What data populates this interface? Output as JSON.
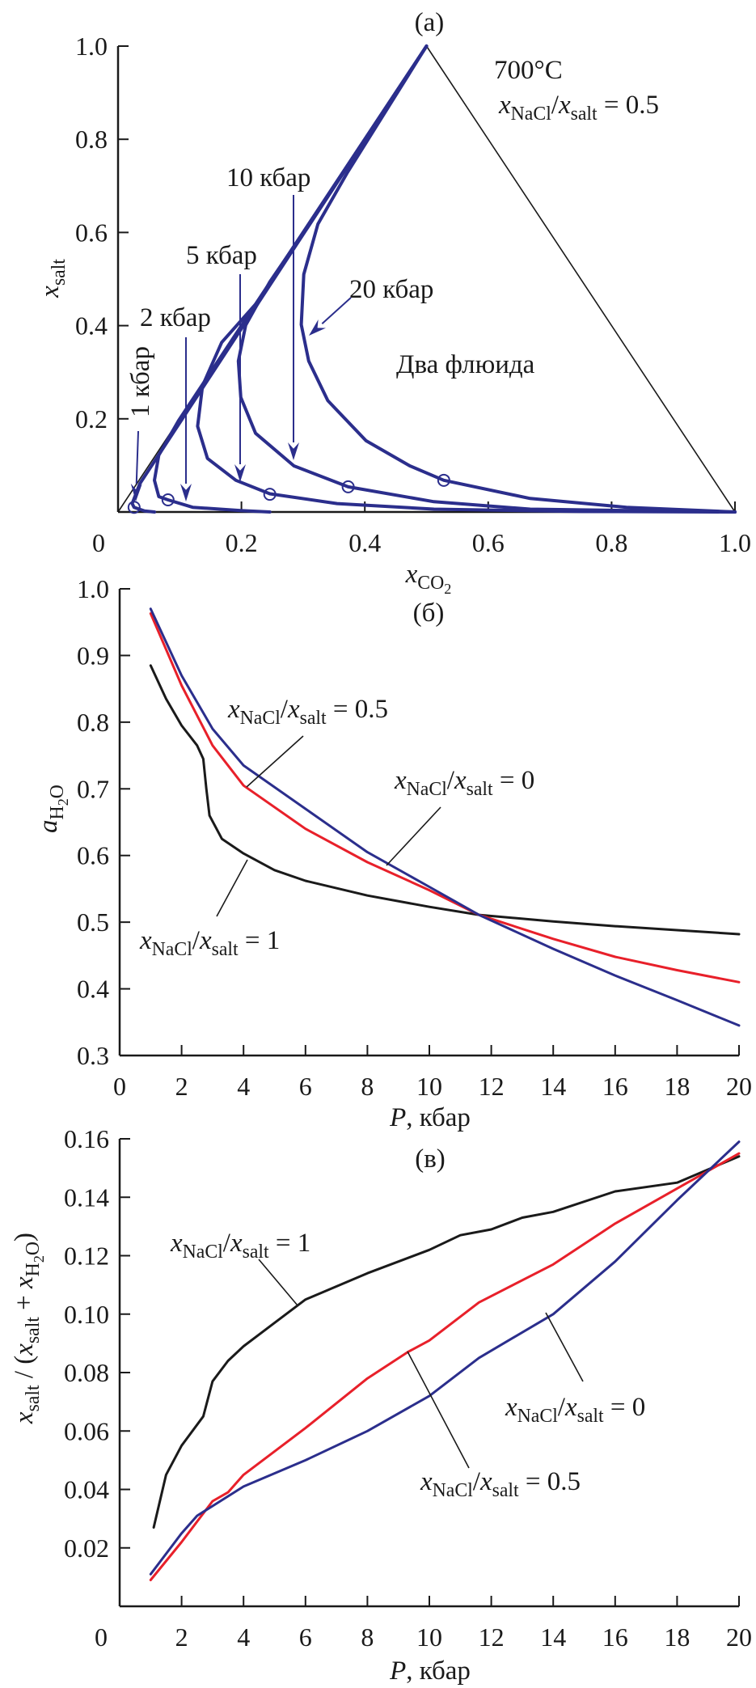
{
  "colors": {
    "axis": "#1a1a1a",
    "blue": "#2b2e8c",
    "red": "#e8202a",
    "black": "#1a1a1a"
  },
  "chart_data": [
    {
      "type": "line",
      "title": "(a)",
      "xlabel": [
        {
          "t": "x",
          "s": "i"
        },
        {
          "t": "CO",
          "s": "sub"
        },
        {
          "t": "2",
          "s": "sub2"
        }
      ],
      "ylabel": [
        {
          "t": "x",
          "s": "i"
        },
        {
          "t": "salt",
          "s": "sub"
        }
      ],
      "xlim": [
        0,
        1
      ],
      "ylim": [
        0,
        1
      ],
      "xticks": [
        0,
        0.2,
        0.4,
        0.6,
        0.8,
        1.0
      ],
      "xtick_labels": [
        "0",
        "0.2",
        "0.4",
        "0.6",
        "0.8",
        "1.0"
      ],
      "yticks": [
        0.2,
        0.4,
        0.6,
        0.8,
        1.0
      ],
      "ytick_labels": [
        "0.2",
        "0.4",
        "0.6",
        "0.8",
        "1.0"
      ],
      "triangle": [
        [
          0,
          0
        ],
        [
          0.5,
          1
        ],
        [
          1,
          0
        ]
      ],
      "temperature_label": "700°C",
      "ratio_label": [
        {
          "t": "x",
          "s": "i"
        },
        {
          "t": "NaCl",
          "s": "sub"
        },
        {
          "t": "/",
          "s": "r"
        },
        {
          "t": "x",
          "s": "i"
        },
        {
          "t": "salt",
          "s": "sub"
        },
        {
          "t": " = 0.5",
          "s": "r"
        }
      ],
      "region_label": "Два флюида",
      "series": [
        {
          "name": "1 кбар",
          "color": "#2b2e8c",
          "x": [
            0.5,
            0.035,
            0.023,
            0.026,
            0.043,
            0.059
          ],
          "y": [
            1,
            0.06,
            0.018,
            0.01,
            0.002,
            0
          ]
        },
        {
          "name": "2 кбар",
          "color": "#2b2e8c",
          "x": [
            0.5,
            0.098,
            0.066,
            0.059,
            0.066,
            0.081,
            0.121,
            0.199,
            0.246
          ],
          "y": [
            1,
            0.196,
            0.122,
            0.068,
            0.033,
            0.026,
            0.01,
            0.003,
            0
          ]
        },
        {
          "name": "5 кбар",
          "color": "#2b2e8c",
          "x": [
            0.5,
            0.223,
            0.168,
            0.137,
            0.129,
            0.145,
            0.191,
            0.246,
            0.355,
            0.512,
            0.75,
            1
          ],
          "y": [
            1,
            0.446,
            0.364,
            0.271,
            0.184,
            0.115,
            0.068,
            0.039,
            0.018,
            0.006,
            0.001,
            0
          ]
        },
        {
          "name": "10 кбар",
          "color": "#2b2e8c",
          "x": [
            0.5,
            0.277,
            0.246,
            0.207,
            0.195,
            0.199,
            0.223,
            0.285,
            0.373,
            0.512,
            0.668,
            1
          ],
          "y": [
            1,
            0.554,
            0.494,
            0.401,
            0.324,
            0.246,
            0.169,
            0.099,
            0.054,
            0.022,
            0.006,
            0
          ]
        },
        {
          "name": "20 кбар",
          "color": "#2b2e8c",
          "x": [
            0.5,
            0.371,
            0.324,
            0.301,
            0.297,
            0.309,
            0.34,
            0.402,
            0.473,
            0.528,
            0.668,
            0.824,
            1
          ],
          "y": [
            1,
            0.727,
            0.618,
            0.51,
            0.402,
            0.324,
            0.239,
            0.153,
            0.099,
            0.068,
            0.029,
            0.01,
            0
          ]
        }
      ],
      "critical_points": {
        "x": [
          0.026,
          0.081,
          0.246,
          0.373,
          0.528
        ],
        "y": [
          0.01,
          0.026,
          0.038,
          0.054,
          0.068
        ]
      }
    },
    {
      "type": "line",
      "title": "(б)",
      "xlabel": [
        {
          "t": "P",
          "s": "i"
        },
        {
          "t": ", кбар",
          "s": "r"
        }
      ],
      "ylabel": [
        {
          "t": "a",
          "s": "i"
        },
        {
          "t": "H",
          "s": "sub"
        },
        {
          "t": "2",
          "s": "sub2"
        },
        {
          "t": "O",
          "s": "sub"
        }
      ],
      "xlim": [
        0,
        20
      ],
      "ylim": [
        0.3,
        1.0
      ],
      "xticks": [
        0,
        2,
        4,
        6,
        8,
        10,
        12,
        14,
        16,
        18,
        20
      ],
      "xtick_labels": [
        "0",
        "2",
        "4",
        "6",
        "8",
        "10",
        "12",
        "14",
        "16",
        "18",
        "20"
      ],
      "yticks": [
        0.3,
        0.4,
        0.5,
        0.6,
        0.7,
        0.8,
        0.9,
        1.0
      ],
      "ytick_labels": [
        "0.3",
        "0.4",
        "0.5",
        "0.6",
        "0.7",
        "0.8",
        "0.9",
        "1.0"
      ],
      "series": [
        {
          "name": [
            {
              "t": "x",
              "s": "i"
            },
            {
              "t": "NaCl",
              "s": "sub"
            },
            {
              "t": "/",
              "s": "r"
            },
            {
              "t": "x",
              "s": "i"
            },
            {
              "t": "salt",
              "s": "sub"
            },
            {
              "t": " = 1",
              "s": "r"
            }
          ],
          "color": "#1a1a1a",
          "x": [
            1,
            1.5,
            2,
            2.5,
            2.7,
            2.8,
            2.9,
            3.3,
            4,
            5,
            6,
            8,
            10,
            11.6,
            14,
            16,
            18,
            20
          ],
          "y": [
            0.885,
            0.835,
            0.795,
            0.765,
            0.745,
            0.7,
            0.66,
            0.625,
            0.603,
            0.578,
            0.562,
            0.54,
            0.523,
            0.511,
            0.501,
            0.494,
            0.488,
            0.482
          ]
        },
        {
          "name": [
            {
              "t": "x",
              "s": "i"
            },
            {
              "t": "NaCl",
              "s": "sub"
            },
            {
              "t": "/",
              "s": "r"
            },
            {
              "t": "x",
              "s": "i"
            },
            {
              "t": "salt",
              "s": "sub"
            },
            {
              "t": " = 0.5",
              "s": "r"
            }
          ],
          "color": "#e8202a",
          "x": [
            1,
            2,
            3,
            4,
            6,
            8,
            10,
            11.6,
            14,
            16,
            18,
            20
          ],
          "y": [
            0.963,
            0.855,
            0.765,
            0.705,
            0.64,
            0.59,
            0.548,
            0.511,
            0.475,
            0.448,
            0.428,
            0.41
          ]
        },
        {
          "name": [
            {
              "t": "x",
              "s": "i"
            },
            {
              "t": "NaCl",
              "s": "sub"
            },
            {
              "t": "/",
              "s": "r"
            },
            {
              "t": "x",
              "s": "i"
            },
            {
              "t": "salt",
              "s": "sub"
            },
            {
              "t": " = 0",
              "s": "r"
            }
          ],
          "color": "#2b2e8c",
          "x": [
            1,
            2,
            3,
            4,
            6,
            8,
            10,
            11.6,
            14,
            16,
            18,
            20
          ],
          "y": [
            0.97,
            0.87,
            0.79,
            0.735,
            0.67,
            0.605,
            0.553,
            0.511,
            0.46,
            0.42,
            0.383,
            0.345
          ]
        }
      ]
    },
    {
      "type": "line",
      "title": "(в)",
      "xlabel": [
        {
          "t": "P",
          "s": "i"
        },
        {
          "t": ", кбар",
          "s": "r"
        }
      ],
      "ylabel": [
        {
          "t": "x",
          "s": "i"
        },
        {
          "t": "salt",
          "s": "sub"
        },
        {
          "t": " / (",
          "s": "r"
        },
        {
          "t": "x",
          "s": "i"
        },
        {
          "t": "salt",
          "s": "sub"
        },
        {
          "t": " + ",
          "s": "r"
        },
        {
          "t": "x",
          "s": "i"
        },
        {
          "t": "H",
          "s": "sub"
        },
        {
          "t": "2",
          "s": "sub2"
        },
        {
          "t": "O",
          "s": "sub"
        },
        {
          "t": ")",
          "s": "r"
        }
      ],
      "xlim": [
        0,
        20
      ],
      "ylim": [
        0,
        0.16
      ],
      "xticks": [
        0,
        2,
        4,
        6,
        8,
        10,
        12,
        14,
        16,
        18,
        20
      ],
      "xtick_labels": [
        "0",
        "2",
        "4",
        "6",
        "8",
        "10",
        "12",
        "14",
        "16",
        "18",
        "20"
      ],
      "yticks": [
        0.02,
        0.04,
        0.06,
        0.08,
        0.1,
        0.12,
        0.14,
        0.16
      ],
      "ytick_labels": [
        "0.02",
        "0.04",
        "0.06",
        "0.08",
        "0.10",
        "0.12",
        "0.14",
        "0.16"
      ],
      "series": [
        {
          "name": [
            {
              "t": "x",
              "s": "i"
            },
            {
              "t": "NaCl",
              "s": "sub"
            },
            {
              "t": "/",
              "s": "r"
            },
            {
              "t": "x",
              "s": "i"
            },
            {
              "t": "salt",
              "s": "sub"
            },
            {
              "t": " = 1",
              "s": "r"
            }
          ],
          "color": "#1a1a1a",
          "x": [
            1.1,
            1.5,
            2,
            2.7,
            3,
            3.5,
            4,
            5,
            6,
            8,
            10,
            11,
            12,
            13,
            14,
            16,
            18,
            20
          ],
          "y": [
            0.027,
            0.045,
            0.055,
            0.065,
            0.077,
            0.084,
            0.089,
            0.097,
            0.105,
            0.114,
            0.122,
            0.127,
            0.129,
            0.133,
            0.135,
            0.142,
            0.145,
            0.154
          ]
        },
        {
          "name": [
            {
              "t": "x",
              "s": "i"
            },
            {
              "t": "NaCl",
              "s": "sub"
            },
            {
              "t": "/",
              "s": "r"
            },
            {
              "t": "x",
              "s": "i"
            },
            {
              "t": "salt",
              "s": "sub"
            },
            {
              "t": " = 0.5",
              "s": "r"
            }
          ],
          "color": "#e8202a",
          "x": [
            1,
            2,
            3,
            3.5,
            4,
            6,
            8,
            9.3,
            10,
            11.6,
            14,
            16,
            18,
            20
          ],
          "y": [
            0.009,
            0.022,
            0.036,
            0.039,
            0.045,
            0.061,
            0.078,
            0.087,
            0.091,
            0.104,
            0.117,
            0.131,
            0.143,
            0.155
          ]
        },
        {
          "name": [
            {
              "t": "x",
              "s": "i"
            },
            {
              "t": "NaCl",
              "s": "sub"
            },
            {
              "t": "/",
              "s": "r"
            },
            {
              "t": "x",
              "s": "i"
            },
            {
              "t": "salt",
              "s": "sub"
            },
            {
              "t": " = 0",
              "s": "r"
            }
          ],
          "color": "#2b2e8c",
          "x": [
            1,
            2,
            2.5,
            4,
            6,
            8,
            10,
            11.6,
            14,
            16,
            18,
            20
          ],
          "y": [
            0.011,
            0.025,
            0.031,
            0.041,
            0.05,
            0.06,
            0.072,
            0.085,
            0.1,
            0.118,
            0.139,
            0.159
          ]
        }
      ]
    }
  ]
}
